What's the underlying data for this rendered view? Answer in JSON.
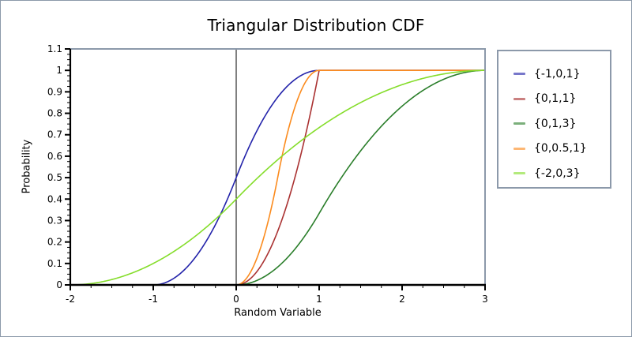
{
  "title": "Triangular Distribution CDF",
  "axes": {
    "xlabel": "Random Variable",
    "ylabel": "Probability",
    "x_ticks": {
      "values": [
        -2,
        -1,
        0,
        1,
        2,
        3
      ],
      "labels": [
        "-2",
        "-1",
        "0",
        "1",
        "2",
        "3"
      ],
      "minor_step": 0.25
    },
    "y_ticks": {
      "values": [
        0,
        0.1,
        0.2,
        0.3,
        0.4,
        0.5,
        0.6,
        0.7,
        0.8,
        0.9,
        1,
        1.1
      ],
      "labels": [
        "0",
        "0.1",
        "0.2",
        "0.3",
        "0.4",
        "0.5",
        "0.6",
        "0.7",
        "0.8",
        "0.9",
        "1",
        "1.1"
      ],
      "minor_step": 0.025
    }
  },
  "colors": {
    "frame": "#8c99aa",
    "axis": "#000000",
    "zero_line": "#000000",
    "background": "#ffffff"
  },
  "chart_data": {
    "type": "line",
    "title": "Triangular Distribution CDF",
    "xlabel": "Random Variable",
    "ylabel": "Probability",
    "xlim": [
      -2,
      3
    ],
    "ylim": [
      0,
      1.1
    ],
    "grid": false,
    "legend_position": "right-outside",
    "curve": "triangular_cdf",
    "series": [
      {
        "name": "{-1,0,1}",
        "color": "#2323aa",
        "params": {
          "min": -1,
          "mode": 0,
          "max": 1
        },
        "points": [
          [
            -1,
            0
          ],
          [
            -0.75,
            0.03125
          ],
          [
            -0.5,
            0.125
          ],
          [
            -0.25,
            0.28125
          ],
          [
            0,
            0.5
          ],
          [
            0.25,
            0.71875
          ],
          [
            0.5,
            0.875
          ],
          [
            0.75,
            0.96875
          ],
          [
            1,
            1
          ],
          [
            3,
            1
          ]
        ]
      },
      {
        "name": "{0,1,1}",
        "color": "#aa3232",
        "params": {
          "min": 0,
          "mode": 1,
          "max": 1
        },
        "points": [
          [
            0,
            0
          ],
          [
            0.25,
            0.0625
          ],
          [
            0.5,
            0.25
          ],
          [
            0.75,
            0.5625
          ],
          [
            1,
            1
          ],
          [
            3,
            1
          ]
        ]
      },
      {
        "name": "{0,1,3}",
        "color": "#2a7e2a",
        "params": {
          "min": 0,
          "mode": 1,
          "max": 3
        },
        "points": [
          [
            0,
            0
          ],
          [
            0.5,
            0.0833
          ],
          [
            1,
            0.3333
          ],
          [
            1.5,
            0.625
          ],
          [
            2,
            0.8333
          ],
          [
            2.5,
            0.9583
          ],
          [
            3,
            1
          ]
        ]
      },
      {
        "name": "{0,0.5,1}",
        "color": "#fb8b1e",
        "params": {
          "min": 0,
          "mode": 0.5,
          "max": 1
        },
        "points": [
          [
            0,
            0
          ],
          [
            0.25,
            0.125
          ],
          [
            0.5,
            0.5
          ],
          [
            0.75,
            0.875
          ],
          [
            1,
            1
          ],
          [
            3,
            1
          ]
        ]
      },
      {
        "name": "{-2,0,3}",
        "color": "#85dd2b",
        "params": {
          "min": -2,
          "mode": 0,
          "max": 3
        },
        "points": [
          [
            -2,
            0
          ],
          [
            -1.5,
            0.025
          ],
          [
            -1,
            0.1
          ],
          [
            -0.5,
            0.225
          ],
          [
            0,
            0.4
          ],
          [
            0.5,
            0.5833
          ],
          [
            1,
            0.7333
          ],
          [
            1.5,
            0.85
          ],
          [
            2,
            0.9333
          ],
          [
            2.5,
            0.9833
          ],
          [
            3,
            1
          ]
        ]
      }
    ]
  }
}
